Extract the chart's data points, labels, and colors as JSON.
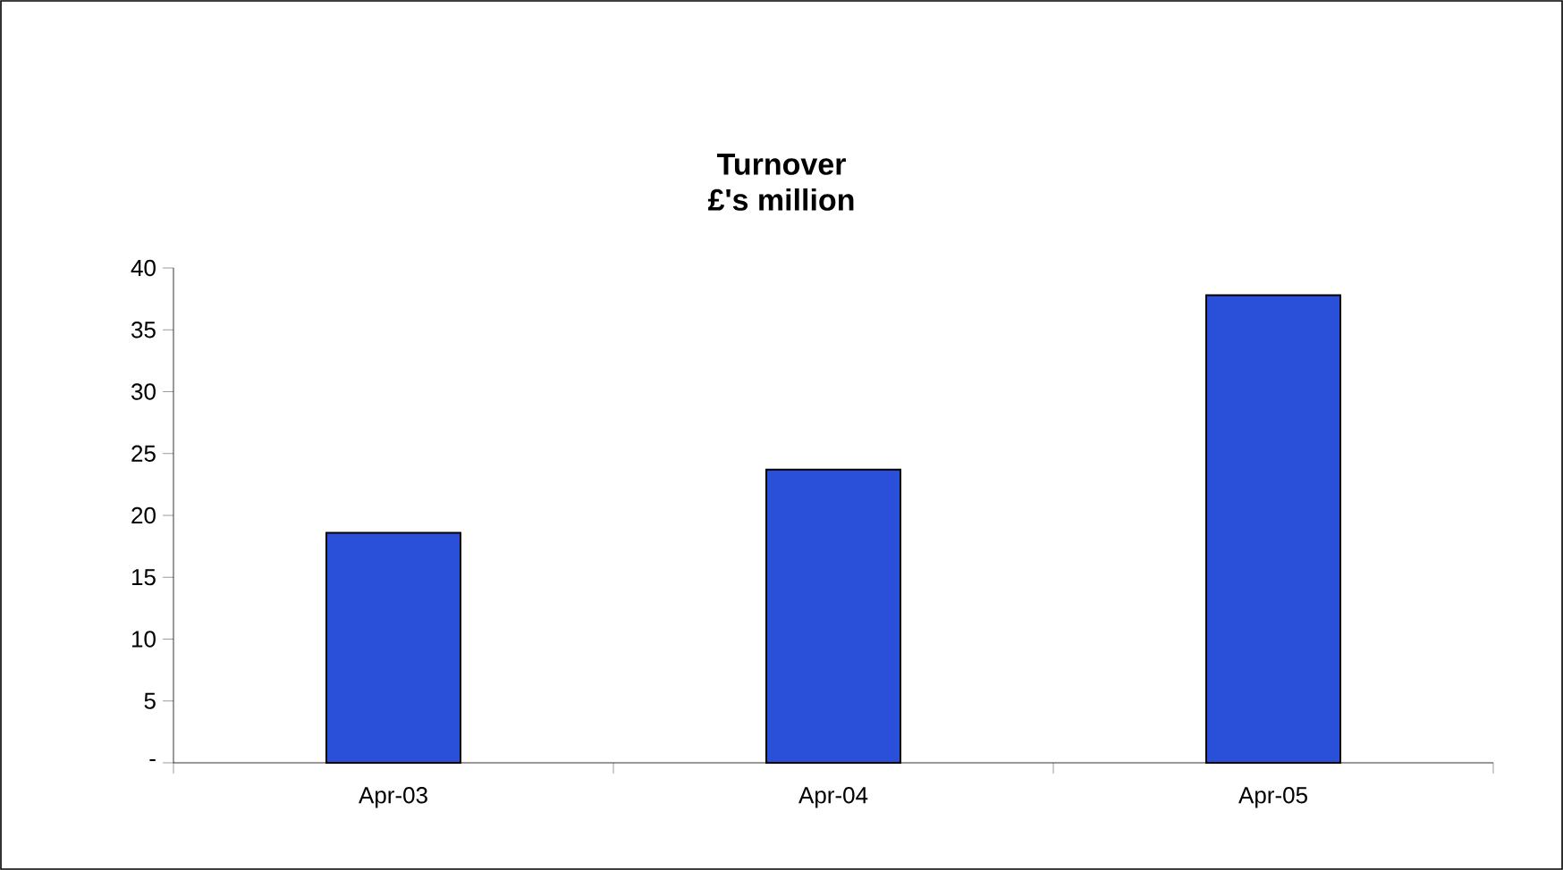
{
  "chart_data": {
    "type": "bar",
    "title": "Turnover",
    "subtitle": "£'s million",
    "categories": [
      "Apr-03",
      "Apr-04",
      "Apr-05"
    ],
    "values": [
      18.6,
      23.7,
      37.8
    ],
    "color": "#2a4fd8",
    "ylim": [
      0,
      40
    ],
    "yticks": [
      {
        "value": 0,
        "label": "-"
      },
      5,
      10,
      15,
      20,
      25,
      30,
      35,
      40
    ],
    "grid": false
  }
}
